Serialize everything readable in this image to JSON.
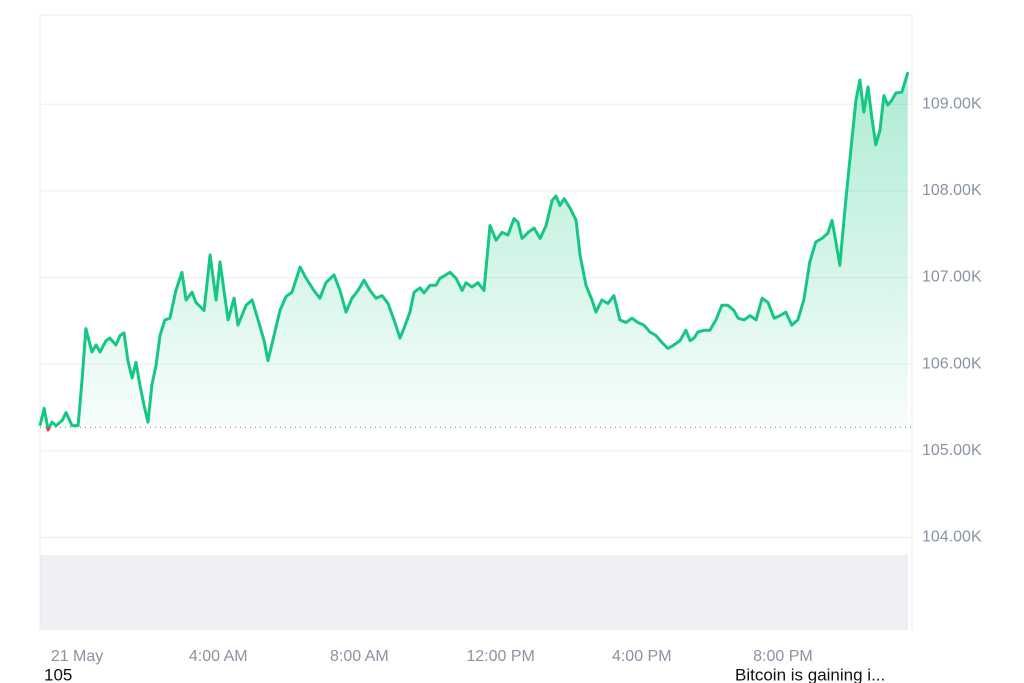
{
  "chart_data": {
    "type": "line",
    "x": [
      -1.05,
      -0.93,
      -0.82,
      -0.71,
      -0.59,
      -0.42,
      -0.31,
      -0.14,
      0.03,
      0.14,
      0.25,
      0.42,
      0.54,
      0.65,
      0.82,
      0.93,
      1.1,
      1.22,
      1.33,
      1.44,
      1.56,
      1.67,
      1.78,
      1.9,
      2.01,
      2.12,
      2.24,
      2.35,
      2.49,
      2.63,
      2.8,
      2.97,
      3.09,
      3.26,
      3.37,
      3.6,
      3.77,
      3.94,
      4.05,
      4.28,
      4.45,
      4.56,
      4.79,
      4.96,
      5.13,
      5.3,
      5.41,
      5.58,
      5.75,
      5.92,
      6.09,
      6.32,
      6.49,
      6.71,
      6.88,
      7.05,
      7.28,
      7.45,
      7.62,
      7.79,
      7.96,
      8.13,
      8.3,
      8.47,
      8.64,
      8.81,
      8.98,
      9.15,
      9.26,
      9.43,
      9.55,
      9.72,
      9.83,
      10.0,
      10.17,
      10.28,
      10.45,
      10.57,
      10.74,
      10.91,
      11.02,
      11.19,
      11.36,
      11.53,
      11.7,
      11.87,
      12.04,
      12.21,
      12.38,
      12.49,
      12.61,
      12.78,
      12.95,
      13.12,
      13.29,
      13.46,
      13.57,
      13.68,
      13.8,
      13.97,
      14.14,
      14.25,
      14.42,
      14.59,
      14.7,
      14.87,
      15.04,
      15.21,
      15.38,
      15.55,
      15.72,
      15.89,
      16.06,
      16.23,
      16.4,
      16.57,
      16.74,
      16.91,
      17.08,
      17.25,
      17.37,
      17.48,
      17.59,
      17.76,
      17.93,
      18.1,
      18.27,
      18.44,
      18.61,
      18.73,
      18.9,
      19.07,
      19.24,
      19.41,
      19.58,
      19.75,
      19.92,
      20.08,
      20.25,
      20.42,
      20.59,
      20.76,
      20.93,
      21.1,
      21.27,
      21.39,
      21.5,
      21.61,
      21.78,
      21.95,
      22.07,
      22.18,
      22.29,
      22.41,
      22.52,
      22.63,
      22.75,
      22.86,
      22.97,
      23.09,
      23.2,
      23.37,
      23.54
    ],
    "series": [
      {
        "color": "#16c784",
        "down_color": "#ea3943",
        "values": [
          105.29,
          105.49,
          105.24,
          105.33,
          105.29,
          105.35,
          105.44,
          105.29,
          105.29,
          105.81,
          106.41,
          106.14,
          106.22,
          106.14,
          106.27,
          106.3,
          106.22,
          106.33,
          106.36,
          106.04,
          105.84,
          106.02,
          105.76,
          105.52,
          105.33,
          105.76,
          105.99,
          106.33,
          106.51,
          106.53,
          106.85,
          107.06,
          106.74,
          106.83,
          106.71,
          106.62,
          107.26,
          106.74,
          107.18,
          106.51,
          106.76,
          106.45,
          106.68,
          106.74,
          106.51,
          106.27,
          106.04,
          106.33,
          106.62,
          106.78,
          106.83,
          107.12,
          106.99,
          106.85,
          106.76,
          106.94,
          107.03,
          106.85,
          106.6,
          106.76,
          106.85,
          106.97,
          106.85,
          106.76,
          106.79,
          106.7,
          106.51,
          106.3,
          106.41,
          106.6,
          106.83,
          106.88,
          106.82,
          106.91,
          106.91,
          106.99,
          107.03,
          107.06,
          106.99,
          106.85,
          106.94,
          106.89,
          106.94,
          106.85,
          107.6,
          107.43,
          107.52,
          107.49,
          107.68,
          107.64,
          107.45,
          107.52,
          107.57,
          107.45,
          107.6,
          107.89,
          107.94,
          107.83,
          107.91,
          107.8,
          107.66,
          107.26,
          106.91,
          106.74,
          106.6,
          106.74,
          106.7,
          106.79,
          106.51,
          106.48,
          106.53,
          106.48,
          106.45,
          106.37,
          106.33,
          106.25,
          106.18,
          106.22,
          106.27,
          106.39,
          106.27,
          106.3,
          106.37,
          106.39,
          106.39,
          106.51,
          106.68,
          106.68,
          106.62,
          106.53,
          106.51,
          106.56,
          106.51,
          106.76,
          106.71,
          106.53,
          106.56,
          106.6,
          106.45,
          106.51,
          106.74,
          107.18,
          107.41,
          107.45,
          107.51,
          107.66,
          107.41,
          107.14,
          107.89,
          108.58,
          109.05,
          109.28,
          108.91,
          109.2,
          108.84,
          108.53,
          108.7,
          109.1,
          108.99,
          109.05,
          109.13,
          109.14,
          109.37
        ]
      }
    ],
    "baseline": 105.27,
    "xlim": [
      -1.05,
      23.6
    ],
    "xticks": [
      {
        "value": 0,
        "label": "21 May"
      },
      {
        "value": 4,
        "label": "4:00 AM"
      },
      {
        "value": 8,
        "label": "8:00 AM"
      },
      {
        "value": 12,
        "label": "12:00 PM"
      },
      {
        "value": 16,
        "label": "4:00 PM"
      },
      {
        "value": 20,
        "label": "8:00 PM"
      }
    ],
    "ylim": [
      102.93,
      110.03
    ],
    "yticks": [
      {
        "value": 104,
        "label": "104.00K"
      },
      {
        "value": 105,
        "label": "105.00K"
      },
      {
        "value": 106,
        "label": "106.00K"
      },
      {
        "value": 107,
        "label": "107.00K"
      },
      {
        "value": 108,
        "label": "108.00K"
      },
      {
        "value": 109,
        "label": "109.00K"
      }
    ],
    "grid": true
  },
  "footer": {
    "left": "105",
    "right": "Bitcoin is gaining i..."
  }
}
